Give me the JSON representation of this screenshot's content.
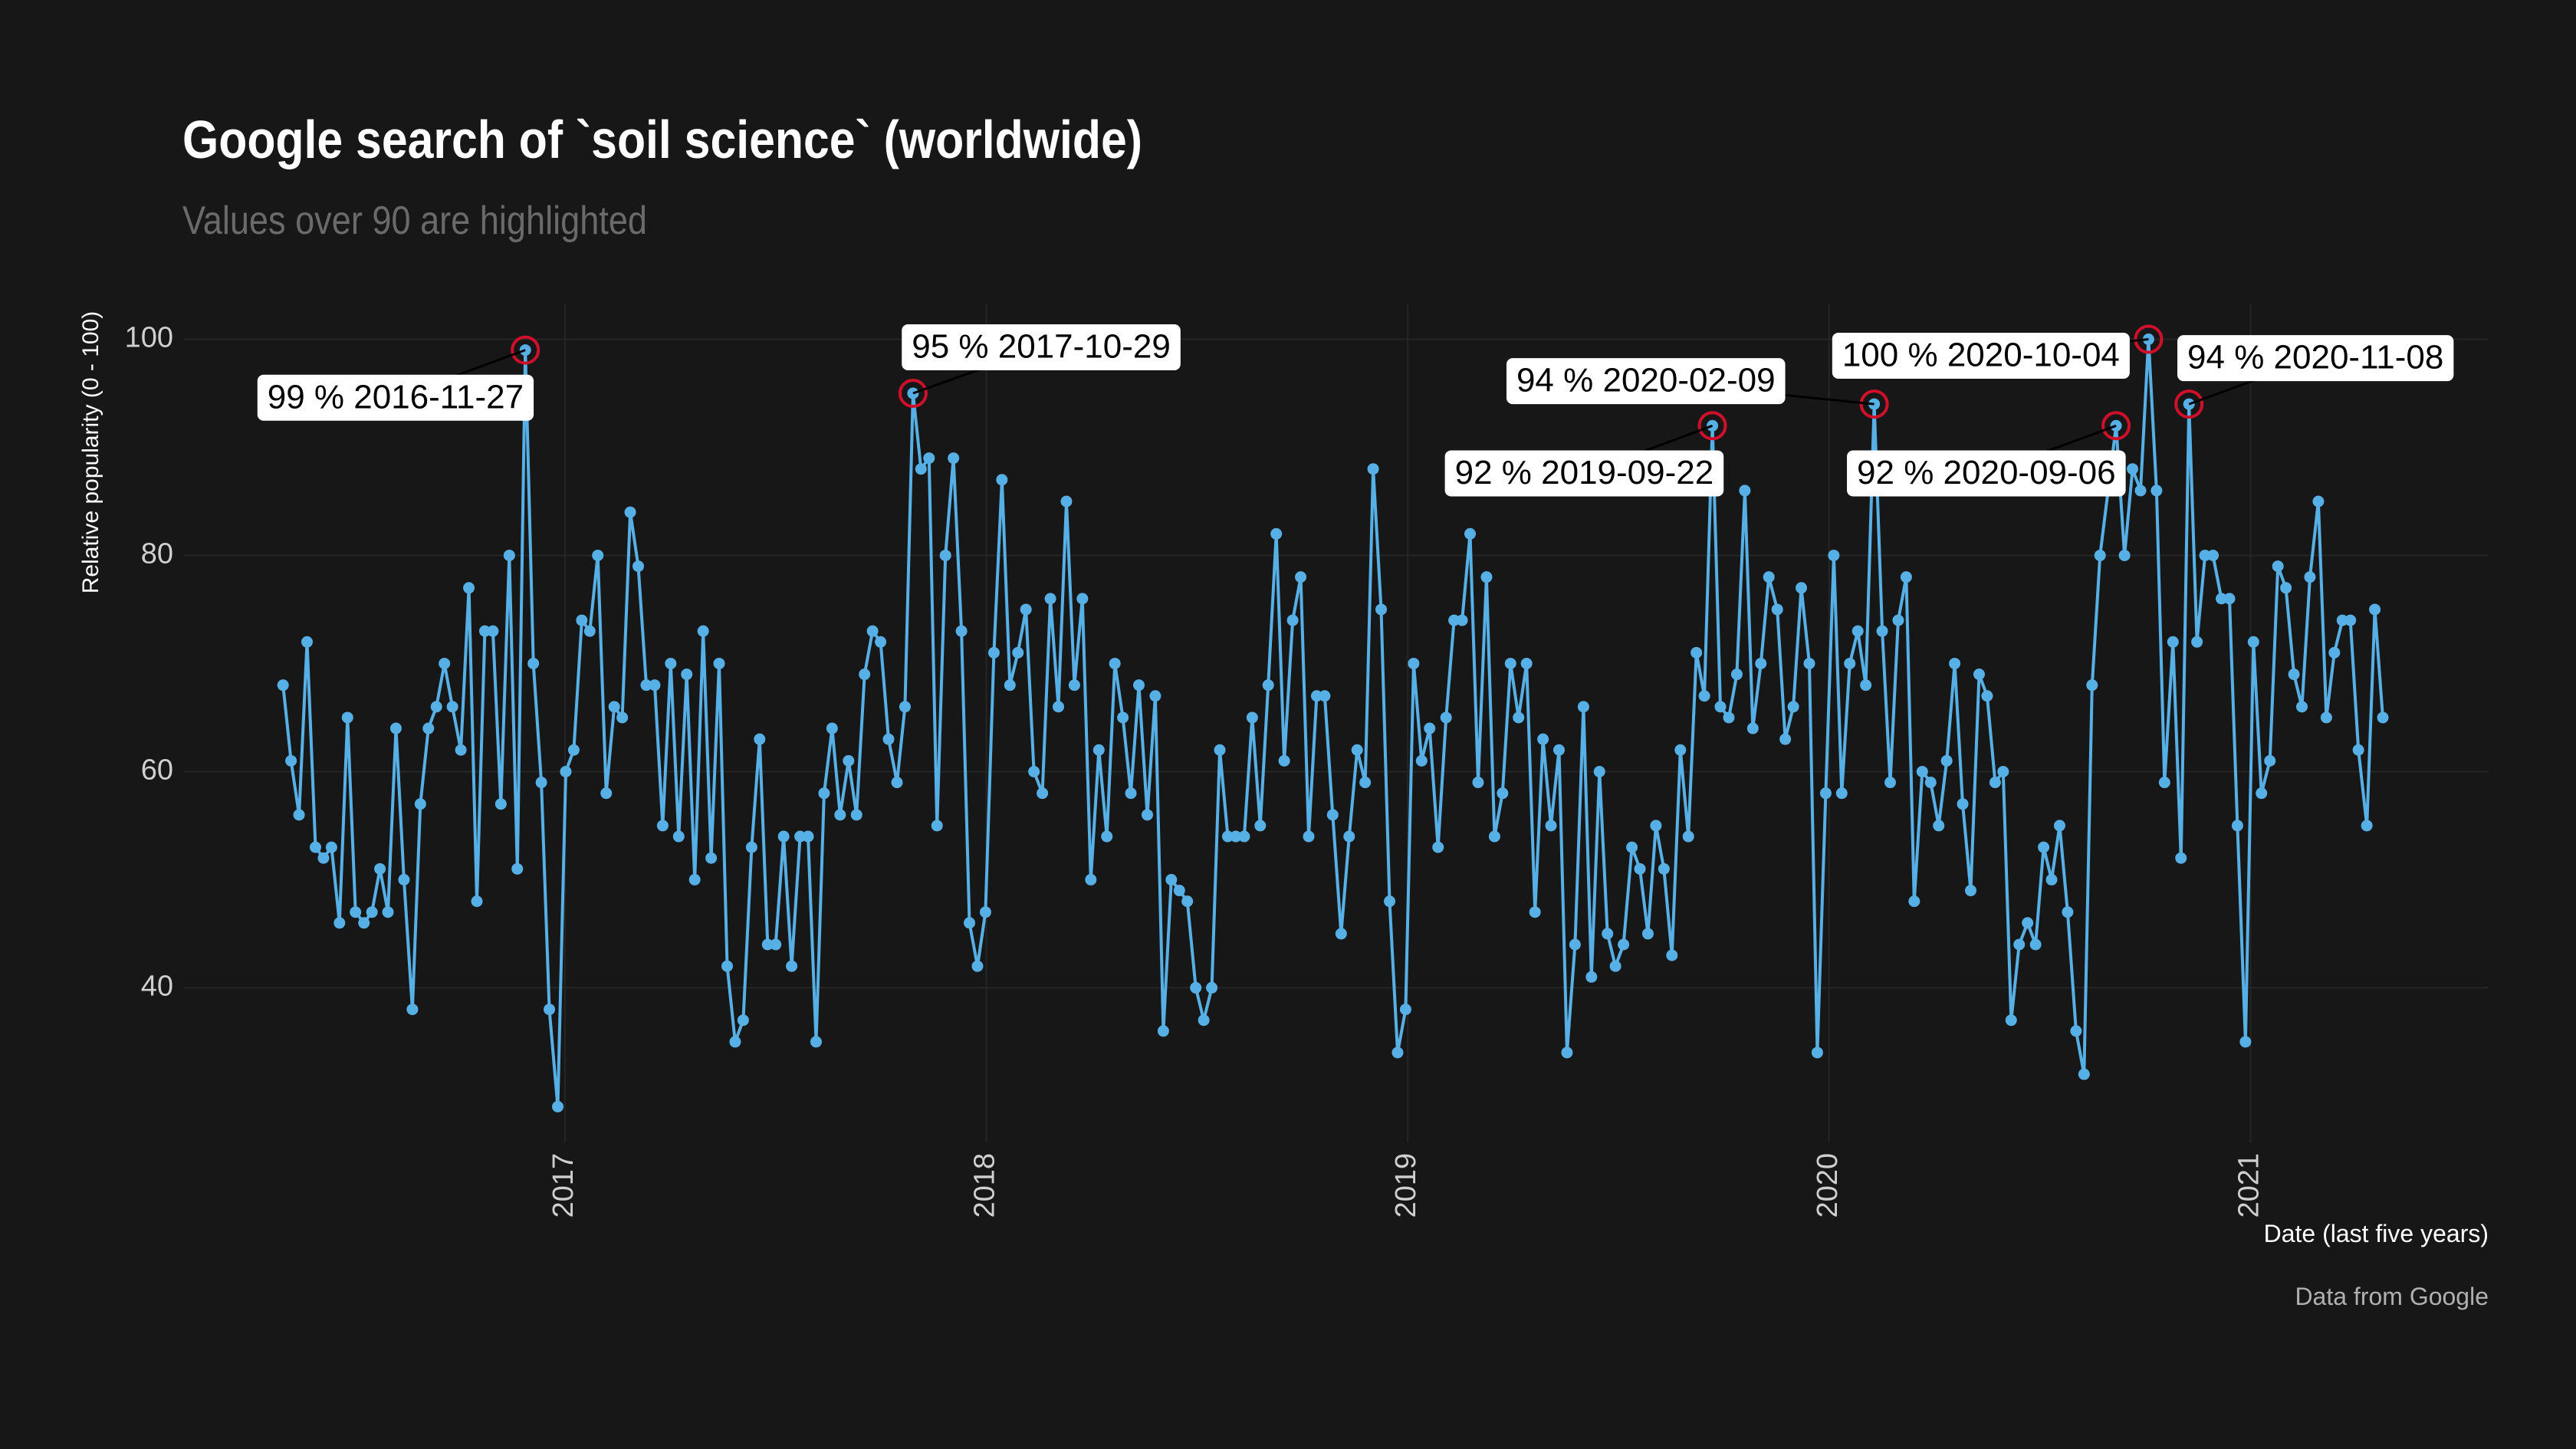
{
  "chart_data": {
    "type": "line",
    "title": "Google search of `soil science` (worldwide)",
    "subtitle": "Values over 90 are highlighted",
    "y_label": "Relative popularity (0 - 100)",
    "x_label": "Date (last five years)",
    "caption": "Data from Google",
    "color": "#56b0e6",
    "highlight_color": "#d0102a",
    "grid": true,
    "xlim": [
      2016.096,
      2021.565
    ],
    "xticks": [
      2017,
      2018,
      2019,
      2020,
      2021
    ],
    "ylim": [
      25.7,
      103.3
    ],
    "yticks": [
      40,
      60,
      80,
      100
    ],
    "x": [
      2016.331,
      2016.35,
      2016.369,
      2016.388,
      2016.408,
      2016.427,
      2016.446,
      2016.465,
      2016.484,
      2016.503,
      2016.523,
      2016.542,
      2016.561,
      2016.58,
      2016.599,
      2016.618,
      2016.638,
      2016.657,
      2016.676,
      2016.695,
      2016.714,
      2016.733,
      2016.753,
      2016.772,
      2016.791,
      2016.81,
      2016.829,
      2016.848,
      2016.868,
      2016.887,
      2016.906,
      2016.925,
      2016.944,
      2016.963,
      2016.983,
      2017.002,
      2017.021,
      2017.04,
      2017.059,
      2017.078,
      2017.098,
      2017.117,
      2017.136,
      2017.155,
      2017.174,
      2017.193,
      2017.213,
      2017.232,
      2017.251,
      2017.27,
      2017.289,
      2017.308,
      2017.328,
      2017.347,
      2017.366,
      2017.385,
      2017.404,
      2017.423,
      2017.443,
      2017.462,
      2017.481,
      2017.5,
      2017.519,
      2017.538,
      2017.558,
      2017.577,
      2017.596,
      2017.615,
      2017.634,
      2017.653,
      2017.673,
      2017.692,
      2017.711,
      2017.73,
      2017.749,
      2017.768,
      2017.788,
      2017.807,
      2017.826,
      2017.845,
      2017.864,
      2017.883,
      2017.903,
      2017.922,
      2017.941,
      2017.96,
      2017.979,
      2017.998,
      2018.018,
      2018.037,
      2018.056,
      2018.075,
      2018.094,
      2018.113,
      2018.133,
      2018.152,
      2018.171,
      2018.19,
      2018.209,
      2018.228,
      2018.248,
      2018.267,
      2018.286,
      2018.305,
      2018.324,
      2018.343,
      2018.362,
      2018.382,
      2018.401,
      2018.42,
      2018.439,
      2018.458,
      2018.477,
      2018.497,
      2018.516,
      2018.535,
      2018.554,
      2018.573,
      2018.592,
      2018.612,
      2018.631,
      2018.65,
      2018.669,
      2018.688,
      2018.707,
      2018.727,
      2018.746,
      2018.765,
      2018.784,
      2018.803,
      2018.822,
      2018.842,
      2018.861,
      2018.88,
      2018.899,
      2018.918,
      2018.937,
      2018.957,
      2018.976,
      2018.995,
      2019.014,
      2019.033,
      2019.052,
      2019.072,
      2019.091,
      2019.11,
      2019.129,
      2019.148,
      2019.167,
      2019.187,
      2019.206,
      2019.225,
      2019.244,
      2019.263,
      2019.282,
      2019.302,
      2019.321,
      2019.34,
      2019.359,
      2019.378,
      2019.397,
      2019.417,
      2019.436,
      2019.455,
      2019.474,
      2019.493,
      2019.512,
      2019.532,
      2019.551,
      2019.57,
      2019.589,
      2019.608,
      2019.627,
      2019.647,
      2019.666,
      2019.685,
      2019.704,
      2019.723,
      2019.742,
      2019.762,
      2019.781,
      2019.8,
      2019.819,
      2019.838,
      2019.857,
      2019.877,
      2019.896,
      2019.915,
      2019.934,
      2019.953,
      2019.972,
      2019.992,
      2020.011,
      2020.03,
      2020.049,
      2020.068,
      2020.087,
      2020.107,
      2020.126,
      2020.145,
      2020.164,
      2020.183,
      2020.202,
      2020.221,
      2020.241,
      2020.26,
      2020.279,
      2020.298,
      2020.317,
      2020.336,
      2020.356,
      2020.375,
      2020.394,
      2020.413,
      2020.432,
      2020.451,
      2020.471,
      2020.49,
      2020.509,
      2020.528,
      2020.547,
      2020.566,
      2020.586,
      2020.605,
      2020.624,
      2020.643,
      2020.662,
      2020.681,
      2020.701,
      2020.72,
      2020.739,
      2020.758,
      2020.777,
      2020.796,
      2020.816,
      2020.835,
      2020.854,
      2020.873,
      2020.892,
      2020.911,
      2020.931,
      2020.95,
      2020.969,
      2020.988,
      2021.007,
      2021.026,
      2021.046,
      2021.065,
      2021.084,
      2021.103,
      2021.122,
      2021.141,
      2021.161,
      2021.18,
      2021.199,
      2021.218,
      2021.237,
      2021.256,
      2021.276,
      2021.295,
      2021.314
    ],
    "values": [
      68,
      61,
      56,
      72,
      53,
      52,
      53,
      46,
      65,
      47,
      46,
      47,
      51,
      47,
      64,
      50,
      38,
      57,
      64,
      66,
      70,
      66,
      62,
      77,
      48,
      73,
      73,
      57,
      80,
      51,
      99,
      70,
      59,
      38,
      29,
      60,
      62,
      74,
      73,
      80,
      58,
      66,
      65,
      84,
      79,
      68,
      68,
      55,
      70,
      54,
      69,
      50,
      73,
      52,
      70,
      42,
      35,
      37,
      53,
      63,
      44,
      44,
      54,
      42,
      54,
      54,
      35,
      58,
      64,
      56,
      61,
      56,
      69,
      73,
      72,
      63,
      59,
      66,
      95,
      88,
      89,
      55,
      80,
      89,
      73,
      46,
      42,
      47,
      71,
      87,
      68,
      71,
      75,
      60,
      58,
      76,
      66,
      85,
      68,
      76,
      50,
      62,
      54,
      70,
      65,
      58,
      68,
      56,
      67,
      36,
      50,
      49,
      48,
      40,
      37,
      40,
      62,
      54,
      54,
      54,
      65,
      55,
      68,
      82,
      61,
      74,
      78,
      54,
      67,
      67,
      56,
      45,
      54,
      62,
      59,
      88,
      75,
      48,
      34,
      38,
      70,
      61,
      64,
      53,
      65,
      74,
      74,
      82,
      59,
      78,
      54,
      58,
      70,
      65,
      70,
      47,
      63,
      55,
      62,
      34,
      44,
      66,
      41,
      60,
      45,
      42,
      44,
      53,
      51,
      45,
      55,
      51,
      43,
      62,
      54,
      71,
      67,
      92,
      66,
      65,
      69,
      86,
      64,
      70,
      78,
      75,
      63,
      66,
      77,
      70,
      34,
      58,
      80,
      58,
      70,
      73,
      68,
      94,
      73,
      59,
      74,
      78,
      48,
      60,
      59,
      55,
      61,
      70,
      57,
      49,
      69,
      67,
      59,
      60,
      37,
      44,
      46,
      44,
      53,
      50,
      55,
      47,
      36,
      32,
      68,
      80,
      86,
      92,
      80,
      88,
      86,
      100,
      86,
      59,
      72,
      52,
      94,
      72,
      80,
      80,
      76,
      76,
      55,
      35,
      72,
      58,
      61,
      79,
      77,
      69,
      66,
      78,
      85,
      65,
      71,
      74,
      74,
      62,
      55,
      75,
      65
    ],
    "annotations": [
      {
        "label": "99 % 2016-11-27",
        "x": 2016.906,
        "y": 99
      },
      {
        "label": "95 % 2017-10-29",
        "x": 2017.826,
        "y": 95
      },
      {
        "label": "92 % 2019-09-22",
        "x": 2019.723,
        "y": 92
      },
      {
        "label": "94 % 2020-02-09",
        "x": 2020.107,
        "y": 94
      },
      {
        "label": "92 % 2020-09-06",
        "x": 2020.681,
        "y": 92
      },
      {
        "label": "100 % 2020-10-04",
        "x": 2020.758,
        "y": 100
      },
      {
        "label": "94 % 2020-11-08",
        "x": 2020.854,
        "y": 94
      }
    ]
  }
}
